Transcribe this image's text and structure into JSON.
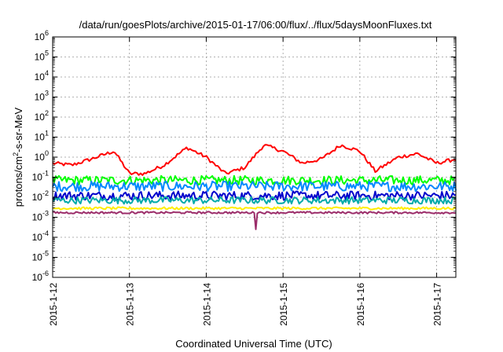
{
  "chart_data": {
    "type": "line",
    "title": "/data/run/goesPlots/archive/2015-01-17/06:00/flux/../flux/5daysMoonFluxes.txt",
    "xlabel": "Coordinated Universal Time (UTC)",
    "ylabel_parts": [
      "protons/cm",
      "2",
      "-s-sr-MeV"
    ],
    "y_scale": "log",
    "ylim": [
      1e-06,
      1000000.0
    ],
    "y_ticks": [
      -6,
      -5,
      -4,
      -3,
      -2,
      -1,
      0,
      1,
      2,
      3,
      4,
      5,
      6
    ],
    "x_ticks": [
      "2015-1-12",
      "2015-1-13",
      "2015-1-14",
      "2015-1-15",
      "2015-1-16",
      "2015-1-17"
    ],
    "xlim_days": [
      "2015-1-12",
      "2015-1-17 06:00"
    ],
    "grid": true,
    "legend": "none",
    "series": [
      {
        "color": "#ff0000",
        "time_days": [
          0.0,
          0.25,
          0.5,
          0.8,
          1.0,
          1.2,
          1.45,
          1.75,
          2.0,
          2.25,
          2.5,
          2.75,
          3.0,
          3.25,
          3.5,
          3.75,
          4.0,
          4.2,
          4.5,
          4.75,
          5.0,
          5.25
        ],
        "values": [
          0.5,
          0.4,
          0.8,
          2.0,
          0.15,
          0.15,
          0.4,
          3.0,
          1.0,
          0.15,
          0.3,
          4.0,
          2.0,
          0.5,
          0.8,
          4.0,
          2.0,
          0.2,
          1.0,
          1.5,
          0.5,
          0.8
        ]
      },
      {
        "color": "#00ff00",
        "base": 0.07,
        "spread": 0.45
      },
      {
        "color": "#0088ff",
        "base": 0.035,
        "spread": 0.5
      },
      {
        "color": "#0000cc",
        "base": 0.012,
        "spread": 0.45
      },
      {
        "color": "#00aaaa",
        "base": 0.007,
        "spread": 0.35
      },
      {
        "color": "#ffee00",
        "base": 0.0028,
        "spread": 0.12
      },
      {
        "color": "#9b2d6a",
        "base": 0.0017,
        "spread": 0.1,
        "dip": {
          "time_days": 2.65,
          "value": 0.00025
        }
      }
    ]
  }
}
